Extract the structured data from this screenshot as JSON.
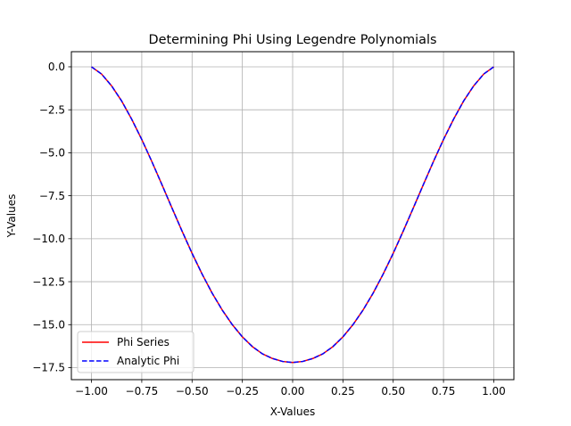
{
  "chart_data": {
    "type": "line",
    "title": "Determining Phi Using Legendre Polynomials",
    "xlabel": "X-Values",
    "ylabel": "Y-Values",
    "xlim": [
      -1.1,
      1.1
    ],
    "ylim": [
      -18.2,
      0.88
    ],
    "x_ticks": [
      -1.0,
      -0.75,
      -0.5,
      -0.25,
      0.0,
      0.25,
      0.5,
      0.75,
      1.0
    ],
    "x_tick_labels": [
      "−1.00",
      "−0.75",
      "−0.50",
      "−0.25",
      "0.00",
      "0.25",
      "0.50",
      "0.75",
      "1.00"
    ],
    "y_ticks": [
      0.0,
      -2.5,
      -5.0,
      -7.5,
      -10.0,
      -12.5,
      -15.0,
      -17.5
    ],
    "y_tick_labels": [
      "0.0",
      "−2.5",
      "−5.0",
      "−7.5",
      "−10.0",
      "−12.5",
      "−15.0",
      "−17.5"
    ],
    "grid": true,
    "legend_position": "lower-left",
    "x": [
      -1.0,
      -0.95,
      -0.9,
      -0.85,
      -0.8,
      -0.75,
      -0.7,
      -0.65,
      -0.6,
      -0.55,
      -0.5,
      -0.45,
      -0.4,
      -0.35,
      -0.3,
      -0.25,
      -0.2,
      -0.15,
      -0.1,
      -0.05,
      0.0,
      0.05,
      0.1,
      0.15,
      0.2,
      0.25,
      0.3,
      0.35,
      0.4,
      0.45,
      0.5,
      0.55,
      0.6,
      0.65,
      0.7,
      0.75,
      0.8,
      0.85,
      0.9,
      0.95,
      1.0
    ],
    "series": [
      {
        "name": "Phi Series",
        "color": "#ff0000",
        "style": "solid",
        "values": [
          0.0,
          -0.42,
          -1.11,
          -1.99,
          -3.05,
          -4.23,
          -5.51,
          -6.85,
          -8.21,
          -9.55,
          -10.85,
          -12.06,
          -13.17,
          -14.15,
          -15.0,
          -15.71,
          -16.28,
          -16.7,
          -16.97,
          -17.14,
          -17.2,
          -17.14,
          -16.97,
          -16.7,
          -16.28,
          -15.71,
          -15.0,
          -14.15,
          -13.17,
          -12.06,
          -10.85,
          -9.55,
          -8.21,
          -6.85,
          -5.51,
          -4.23,
          -3.05,
          -1.99,
          -1.11,
          -0.42,
          0.0
        ]
      },
      {
        "name": "Analytic Phi",
        "color": "#0000ff",
        "style": "dashed",
        "values": [
          0.0,
          -0.42,
          -1.11,
          -1.99,
          -3.05,
          -4.23,
          -5.51,
          -6.85,
          -8.21,
          -9.55,
          -10.85,
          -12.06,
          -13.17,
          -14.15,
          -15.0,
          -15.71,
          -16.28,
          -16.7,
          -16.97,
          -17.14,
          -17.2,
          -17.14,
          -16.97,
          -16.7,
          -16.28,
          -15.71,
          -15.0,
          -14.15,
          -13.17,
          -12.06,
          -10.85,
          -9.55,
          -8.21,
          -6.85,
          -5.51,
          -4.23,
          -3.05,
          -1.99,
          -1.11,
          -0.42,
          0.0
        ]
      }
    ]
  }
}
